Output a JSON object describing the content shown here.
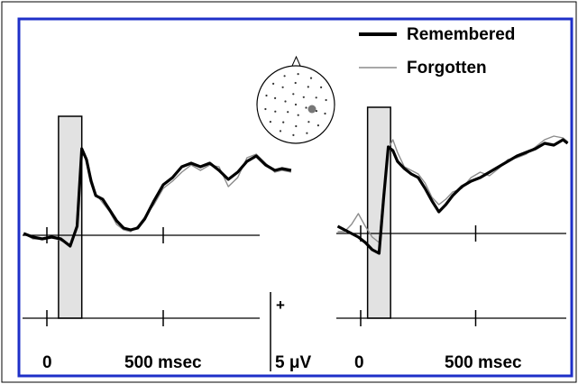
{
  "chart_data": {
    "type": "line",
    "legend": {
      "placement": "top-right",
      "entries": [
        "Remembered",
        "Forgotten"
      ]
    },
    "x_tick_labels": [
      "0",
      "500 msec"
    ],
    "scale_bar": {
      "sign": "+",
      "label": "5 μV"
    },
    "colors": {
      "frame": "#1e2fc8",
      "remembered": "#000000",
      "forgotten": "#8c8c8c",
      "shaded_window": "#e2e2e2"
    },
    "head_map": {
      "description_icon": "electrode-head-icon"
    },
    "panels": [
      {
        "id": "left",
        "xlim_ms": [
          -100,
          1050
        ],
        "shaded_window_ms": [
          50,
          150
        ],
        "series": [
          {
            "name": "Remembered",
            "x": [
              -100,
              -60,
              -20,
              20,
              60,
              100,
              130,
              150,
              170,
              190,
              210,
              240,
              270,
              300,
              330,
              360,
              390,
              420,
              460,
              500,
              540,
              580,
              620,
              660,
              700,
              740,
              780,
              820,
              860,
              900,
              940,
              980,
              1010,
              1050
            ],
            "y": [
              0.1,
              -0.1,
              -0.2,
              -0.1,
              -0.2,
              -0.6,
              0.5,
              4.8,
              4.2,
              3.0,
              2.2,
              2.0,
              1.4,
              0.8,
              0.4,
              0.3,
              0.4,
              0.9,
              1.9,
              2.8,
              3.2,
              3.8,
              4.0,
              3.8,
              4.0,
              3.6,
              3.1,
              3.5,
              4.1,
              4.4,
              3.9,
              3.6,
              3.7,
              3.6
            ]
          },
          {
            "name": "Forgotten",
            "x": [
              -100,
              -60,
              -20,
              20,
              60,
              100,
              130,
              150,
              170,
              190,
              210,
              240,
              270,
              300,
              330,
              360,
              390,
              420,
              460,
              500,
              540,
              580,
              620,
              660,
              700,
              740,
              780,
              820,
              860,
              900,
              940,
              980,
              1010,
              1050
            ],
            "y": [
              0.1,
              -0.2,
              -0.2,
              -0.1,
              -0.3,
              -0.5,
              0.4,
              4.5,
              4.3,
              3.2,
              2.3,
              1.8,
              1.3,
              0.6,
              0.3,
              0.2,
              0.5,
              1.0,
              1.7,
              2.6,
              3.0,
              3.5,
              3.9,
              3.6,
              3.9,
              3.8,
              2.7,
              3.2,
              4.3,
              4.5,
              4.0,
              3.5,
              3.6,
              3.5
            ]
          }
        ]
      },
      {
        "id": "right",
        "xlim_ms": [
          -100,
          900
        ],
        "shaded_window_ms": [
          30,
          130
        ],
        "series": [
          {
            "name": "Remembered",
            "x": [
              -100,
              -70,
              -40,
              -10,
              20,
              50,
              80,
              100,
              120,
              140,
              160,
              190,
              220,
              250,
              280,
              310,
              340,
              370,
              400,
              440,
              480,
              520,
              560,
              600,
              640,
              680,
              720,
              760,
              800,
              840,
              880,
              900
            ],
            "y": [
              0.4,
              0.2,
              0.0,
              -0.2,
              -0.5,
              -0.9,
              -1.1,
              2.0,
              4.8,
              4.6,
              4.0,
              3.6,
              3.3,
              3.1,
              2.5,
              1.8,
              1.2,
              1.6,
              2.1,
              2.6,
              2.9,
              3.1,
              3.4,
              3.7,
              4.0,
              4.3,
              4.5,
              4.7,
              5.0,
              4.9,
              5.2,
              5.0
            ]
          },
          {
            "name": "Forgotten",
            "x": [
              -100,
              -70,
              -40,
              -10,
              20,
              50,
              80,
              100,
              120,
              140,
              160,
              190,
              220,
              250,
              280,
              310,
              340,
              370,
              400,
              440,
              480,
              520,
              560,
              600,
              640,
              680,
              720,
              760,
              800,
              840,
              880,
              900
            ],
            "y": [
              0.1,
              0.1,
              0.5,
              1.1,
              0.4,
              -0.2,
              -0.5,
              2.4,
              4.7,
              5.2,
              4.5,
              3.7,
              3.5,
              3.3,
              2.8,
              2.0,
              1.6,
              1.9,
              2.3,
              2.5,
              3.1,
              3.4,
              3.2,
              3.6,
              4.1,
              4.2,
              4.4,
              4.8,
              5.2,
              5.4,
              5.3,
              5.1
            ]
          }
        ]
      }
    ]
  }
}
